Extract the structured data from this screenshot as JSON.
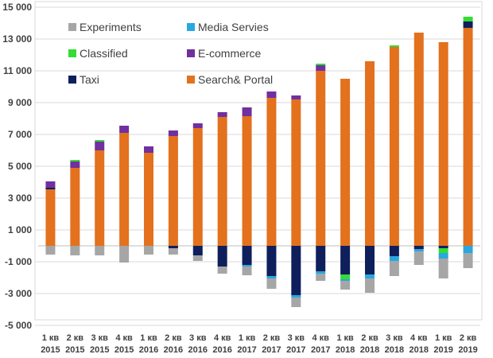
{
  "chart_data": {
    "type": "bar",
    "stacked": true,
    "title": "",
    "xlabel": "",
    "ylabel": "",
    "ylim": [
      -5000,
      15000
    ],
    "yticks": [
      -5000,
      -3000,
      -1000,
      1000,
      3000,
      5000,
      7000,
      9000,
      11000,
      13000,
      15000
    ],
    "ytick_labels": [
      "-5 000",
      "-3 000",
      "-1 000",
      "1 000",
      "3 000",
      "5 000",
      "7 000",
      "9 000",
      "11 000",
      "13 000",
      "15 000"
    ],
    "grid": true,
    "legend_position": "top-left",
    "categories": [
      [
        "1 кв",
        "2015"
      ],
      [
        "2 кв",
        "2015"
      ],
      [
        "3 кв",
        "2015"
      ],
      [
        "4 кв",
        "2015"
      ],
      [
        "1 кв",
        "2016"
      ],
      [
        "2 кв",
        "2016"
      ],
      [
        "3 кв",
        "2016"
      ],
      [
        "4 кв",
        "2016"
      ],
      [
        "1 кв",
        "2017"
      ],
      [
        "2 кв",
        "2017"
      ],
      [
        "3 кв",
        "2017"
      ],
      [
        "4 кв",
        "2017"
      ],
      [
        "1 кв",
        "2018"
      ],
      [
        "2 кв",
        "2018"
      ],
      [
        "3 кв",
        "2018"
      ],
      [
        "4 кв",
        "2018"
      ],
      [
        "1 кв",
        "2019"
      ],
      [
        "2 кв",
        "2019"
      ]
    ],
    "series": [
      {
        "name": "Search& Portal",
        "color": "#E3711D",
        "values": [
          3550,
          4900,
          6000,
          7100,
          5850,
          6900,
          7400,
          8100,
          8150,
          9300,
          9200,
          11000,
          10500,
          11600,
          12500,
          13400,
          12800,
          13700
        ]
      },
      {
        "name": "Taxi",
        "color": "#0E1F5B",
        "values": [
          100,
          0,
          0,
          0,
          0,
          -150,
          -600,
          -1300,
          -1200,
          -1900,
          -3100,
          -1600,
          -1800,
          -1800,
          -650,
          -200,
          -150,
          0
        ]
      },
      {
        "name": "E-commerce",
        "color": "#7030A0",
        "values": [
          400,
          400,
          550,
          450,
          400,
          350,
          300,
          300,
          550,
          400,
          250,
          350,
          0,
          0,
          0,
          0,
          0,
          0
        ]
      },
      {
        "name": "Classified",
        "color": "#33DD33",
        "values": [
          0,
          100,
          100,
          0,
          0,
          0,
          0,
          0,
          0,
          0,
          0,
          100,
          -300,
          0,
          100,
          0,
          -300,
          300
        ]
      },
      {
        "name": "Media Servies",
        "color": "#29A8E0",
        "values": [
          0,
          0,
          0,
          0,
          0,
          0,
          0,
          0,
          -100,
          -150,
          -150,
          -150,
          -100,
          -250,
          -300,
          -150,
          -350,
          -450
        ]
      },
      {
        "name": "Experiments",
        "color": "#A6A6A6",
        "values": [
          -550,
          -600,
          -600,
          -1050,
          -550,
          -400,
          -350,
          -450,
          -550,
          -650,
          -600,
          -450,
          -550,
          -900,
          -950,
          -850,
          -1250,
          -950
        ]
      }
    ],
    "extra_positive": {
      "series": "Taxi",
      "values_top": [
        0,
        0,
        0,
        0,
        0,
        0,
        0,
        0,
        0,
        0,
        0,
        0,
        0,
        0,
        0,
        0,
        0,
        400
      ]
    },
    "legend": [
      {
        "name": "Experiments",
        "color": "#A6A6A6"
      },
      {
        "name": "Media Servies",
        "color": "#29A8E0"
      },
      {
        "name": "Classified",
        "color": "#33DD33"
      },
      {
        "name": "E-commerce",
        "color": "#7030A0"
      },
      {
        "name": "Taxi",
        "color": "#0E1F5B"
      },
      {
        "name": "Search& Portal",
        "color": "#E3711D"
      }
    ]
  }
}
